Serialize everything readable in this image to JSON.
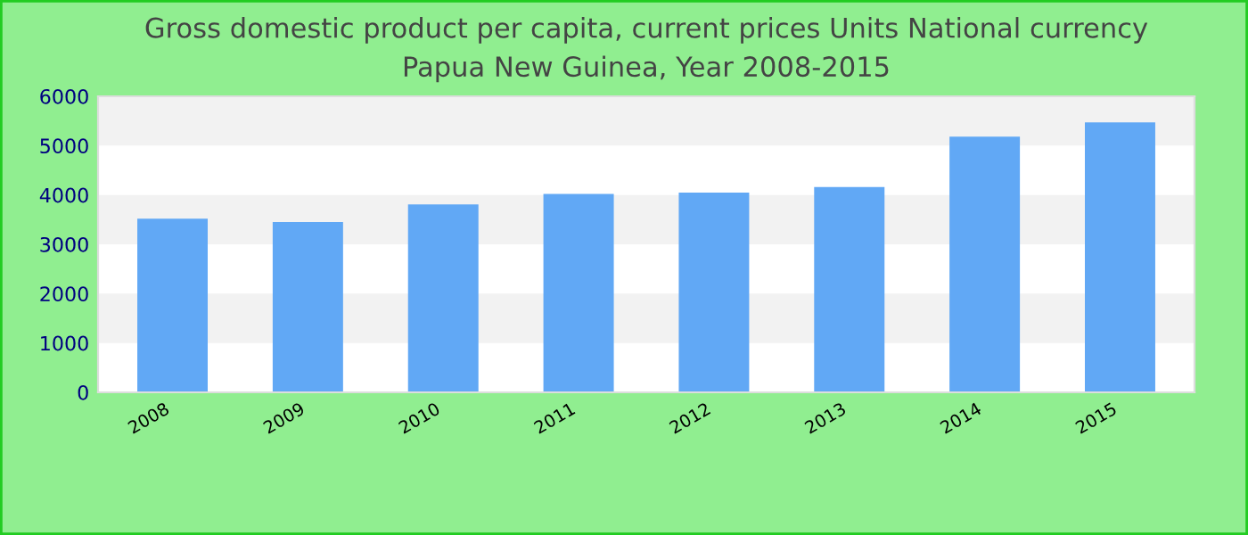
{
  "chart_data": {
    "type": "bar",
    "title": "Gross domestic product per capita, current prices Units National currency\nPapua New Guinea, Year 2008-2015",
    "categories": [
      "2008",
      "2009",
      "2010",
      "2011",
      "2012",
      "2013",
      "2014",
      "2015"
    ],
    "values": [
      3520,
      3450,
      3810,
      4020,
      4050,
      4160,
      5180,
      5470
    ],
    "color": "#61a8f5",
    "ylim": [
      0,
      6000
    ],
    "yticks": [
      0,
      1000,
      2000,
      3000,
      4000,
      5000,
      6000
    ],
    "bands": [
      {
        "axis": "y",
        "from": 1000,
        "to": 2000,
        "color": "#f2f2f2"
      },
      {
        "axis": "y",
        "from": 3000,
        "to": 4000,
        "color": "#f2f2f2"
      },
      {
        "axis": "y",
        "from": 5000,
        "to": 6000,
        "color": "#f2f2f2"
      }
    ]
  }
}
